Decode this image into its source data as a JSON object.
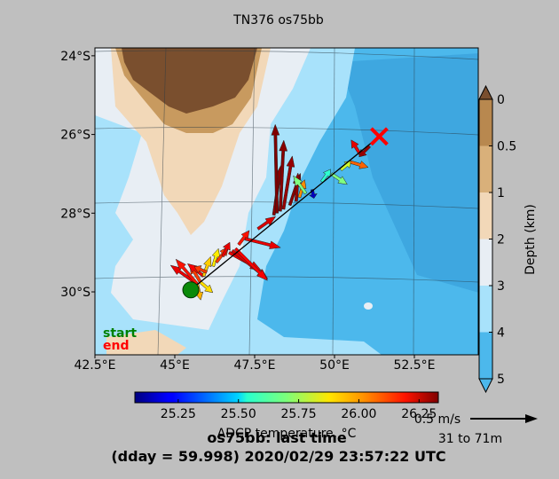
{
  "chart_data": {
    "type": "vector_map",
    "title": "TN376 os75bb",
    "subtitle_line1": "os75bb: last time",
    "subtitle_line2": "(dday = 59.998) 2020/02/29 23:57:22 UTC",
    "x_ticks": [
      "42.5°E",
      "45°E",
      "47.5°E",
      "50°E",
      "52.5°E"
    ],
    "x_tick_values": [
      42.5,
      45,
      47.5,
      50,
      52.5
    ],
    "y_ticks": [
      "24°S",
      "26°S",
      "28°S",
      "30°S"
    ],
    "y_tick_values": [
      -24,
      -26,
      -28,
      -30
    ],
    "lon_range": [
      42.5,
      54.5
    ],
    "lat_range": [
      -31.6,
      -23.8
    ],
    "start_label": "start",
    "end_label": "end",
    "start_point": {
      "lon": 45.5,
      "lat": -29.95
    },
    "end_point": {
      "lon": 51.4,
      "lat": -26.05
    },
    "depth_colorbar": {
      "label": "Depth (km)",
      "ticks": [
        "0",
        "0.5",
        "1",
        "2",
        "3",
        "4",
        "5"
      ],
      "colors": [
        "#7a4f2e",
        "#b8884f",
        "#d9b07a",
        "#f2d8b8",
        "#e8eef4",
        "#a8e2fb",
        "#4cb8ec"
      ]
    },
    "temp_colorbar": {
      "label": "ADCP temperature, °C",
      "ticks": [
        "25.25",
        "25.50",
        "25.75",
        "26.00",
        "26.25"
      ],
      "tick_values": [
        25.25,
        25.5,
        25.75,
        26.0,
        26.25
      ],
      "range": [
        25.07,
        26.33
      ]
    },
    "scale": {
      "label": "0.5 m/s",
      "depth_label": "31 to 71m"
    },
    "vectors": [
      {
        "lon": 45.7,
        "lat": -29.8,
        "u": -0.75,
        "v": 0.53,
        "temp": 26.2
      },
      {
        "lon": 45.7,
        "lat": -29.8,
        "u": -0.6,
        "v": 0.7,
        "temp": 26.15
      },
      {
        "lon": 45.7,
        "lat": -29.8,
        "u": 0.1,
        "v": -0.45,
        "temp": 25.95
      },
      {
        "lon": 45.8,
        "lat": -29.75,
        "u": -0.3,
        "v": 0.5,
        "temp": 26.1
      },
      {
        "lon": 45.8,
        "lat": -29.75,
        "u": 0.35,
        "v": -0.3,
        "temp": 25.9
      },
      {
        "lon": 45.9,
        "lat": -29.6,
        "u": -0.45,
        "v": 0.35,
        "temp": 26.18
      },
      {
        "lon": 45.9,
        "lat": -29.6,
        "u": 0.2,
        "v": 0.55,
        "temp": 25.92
      },
      {
        "lon": 46.0,
        "lat": -29.5,
        "u": -0.35,
        "v": 0.15,
        "temp": 26.1
      },
      {
        "lon": 46.2,
        "lat": -29.35,
        "u": 0.15,
        "v": 0.5,
        "temp": 25.88
      },
      {
        "lon": 46.3,
        "lat": -29.25,
        "u": 0.35,
        "v": 0.45,
        "temp": 26.1
      },
      {
        "lon": 46.5,
        "lat": -29.1,
        "u": 0.2,
        "v": 0.4,
        "temp": 26.2
      },
      {
        "lon": 46.7,
        "lat": -29.0,
        "u": 0.9,
        "v": -0.5,
        "temp": 26.2
      },
      {
        "lon": 46.8,
        "lat": -28.95,
        "u": 1.0,
        "v": -0.8,
        "temp": 26.22
      },
      {
        "lon": 46.9,
        "lat": -28.9,
        "u": 0.9,
        "v": -0.9,
        "temp": 26.18
      },
      {
        "lon": 47.0,
        "lat": -28.8,
        "u": 0.3,
        "v": 0.4,
        "temp": 26.15
      },
      {
        "lon": 47.2,
        "lat": -28.65,
        "u": 1.0,
        "v": -0.25,
        "temp": 26.2
      },
      {
        "lon": 47.6,
        "lat": -28.4,
        "u": 0.5,
        "v": 0.35,
        "temp": 26.22
      },
      {
        "lon": 48.1,
        "lat": -28.05,
        "u": 0.2,
        "v": 1.4,
        "temp": 26.32
      },
      {
        "lon": 48.2,
        "lat": -28.0,
        "u": -0.05,
        "v": 2.5,
        "temp": 26.33
      },
      {
        "lon": 48.3,
        "lat": -27.95,
        "u": 0.1,
        "v": 2.0,
        "temp": 26.32
      },
      {
        "lon": 48.4,
        "lat": -27.9,
        "u": 0.25,
        "v": 1.5,
        "temp": 26.3
      },
      {
        "lon": 48.6,
        "lat": -27.8,
        "u": 0.3,
        "v": 0.9,
        "temp": 26.32
      },
      {
        "lon": 48.8,
        "lat": -27.7,
        "u": 0.05,
        "v": 0.8,
        "temp": 26.3
      },
      {
        "lon": 48.9,
        "lat": -27.6,
        "u": 0.15,
        "v": 0.5,
        "temp": 26.0
      },
      {
        "lon": 49.1,
        "lat": -27.5,
        "u": -0.35,
        "v": 0.5,
        "temp": 25.7
      },
      {
        "lon": 49.3,
        "lat": -27.4,
        "u": 0.05,
        "v": -0.25,
        "temp": 25.15
      },
      {
        "lon": 49.6,
        "lat": -27.2,
        "u": 0.25,
        "v": 0.35,
        "temp": 25.6
      },
      {
        "lon": 49.9,
        "lat": -27.0,
        "u": 0.45,
        "v": -0.3,
        "temp": 25.7
      },
      {
        "lon": 50.2,
        "lat": -26.9,
        "u": 0.3,
        "v": 0.25,
        "temp": 25.8
      },
      {
        "lon": 50.5,
        "lat": -26.7,
        "u": 0.5,
        "v": -0.15,
        "temp": 26.05
      },
      {
        "lon": 50.8,
        "lat": -26.5,
        "u": -0.25,
        "v": 0.4,
        "temp": 26.2
      },
      {
        "lon": 51.1,
        "lat": -26.3,
        "u": -0.3,
        "v": -0.3,
        "temp": 26.3
      }
    ]
  }
}
